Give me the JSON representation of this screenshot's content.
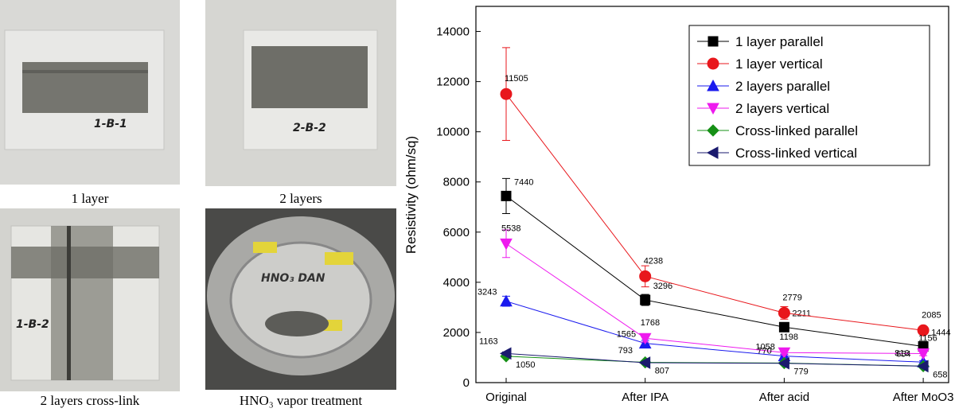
{
  "photos": [
    {
      "caption": "1 layer",
      "handwriting": "1-B-1"
    },
    {
      "caption": "2 layers",
      "handwriting": "2-B-2"
    },
    {
      "caption": "2 layers cross-link",
      "handwriting": "1-B-2"
    },
    {
      "caption": "HNO₃ vapor treatment",
      "handwriting": "HNO₃ DAN"
    }
  ],
  "chart_data": {
    "type": "line",
    "y_label": "Resistivity (ohm/sq)",
    "categories": [
      "Original",
      "After IPA",
      "After acid",
      "After MoO3"
    ],
    "ylim": [
      0,
      15000
    ],
    "yticks": [
      0,
      2000,
      4000,
      6000,
      8000,
      10000,
      12000,
      14000
    ],
    "legend": "upper right",
    "series": [
      {
        "name": "1 layer parallel",
        "color": "#000000",
        "marker": "square",
        "values": [
          7440,
          3296,
          2211,
          1444
        ],
        "errors": [
          700,
          220,
          150,
          100
        ]
      },
      {
        "name": "1 layer vertical",
        "color": "#e8171c",
        "marker": "circle",
        "values": [
          11505,
          4238,
          2779,
          2085
        ],
        "errors": [
          1850,
          420,
          250,
          150
        ]
      },
      {
        "name": "2 layers parallel",
        "color": "#1a1aee",
        "marker": "triangle-up",
        "values": [
          3243,
          1565,
          1058,
          816
        ],
        "errors": [
          200,
          120,
          80,
          60
        ]
      },
      {
        "name": "2 layers vertical",
        "color": "#ee1aee",
        "marker": "triangle-down",
        "values": [
          5538,
          1768,
          1198,
          1156
        ],
        "errors": [
          550,
          150,
          90,
          80
        ]
      },
      {
        "name": "Cross-linked parallel",
        "color": "#169016",
        "marker": "diamond",
        "values": [
          1050,
          807,
          779,
          658
        ],
        "errors": [
          60,
          40,
          40,
          30
        ]
      },
      {
        "name": "Cross-linked vertical",
        "color": "#1a1a6e",
        "marker": "triangle-left",
        "values": [
          1163,
          793,
          770,
          654
        ],
        "errors": [
          60,
          40,
          40,
          30
        ]
      }
    ]
  }
}
